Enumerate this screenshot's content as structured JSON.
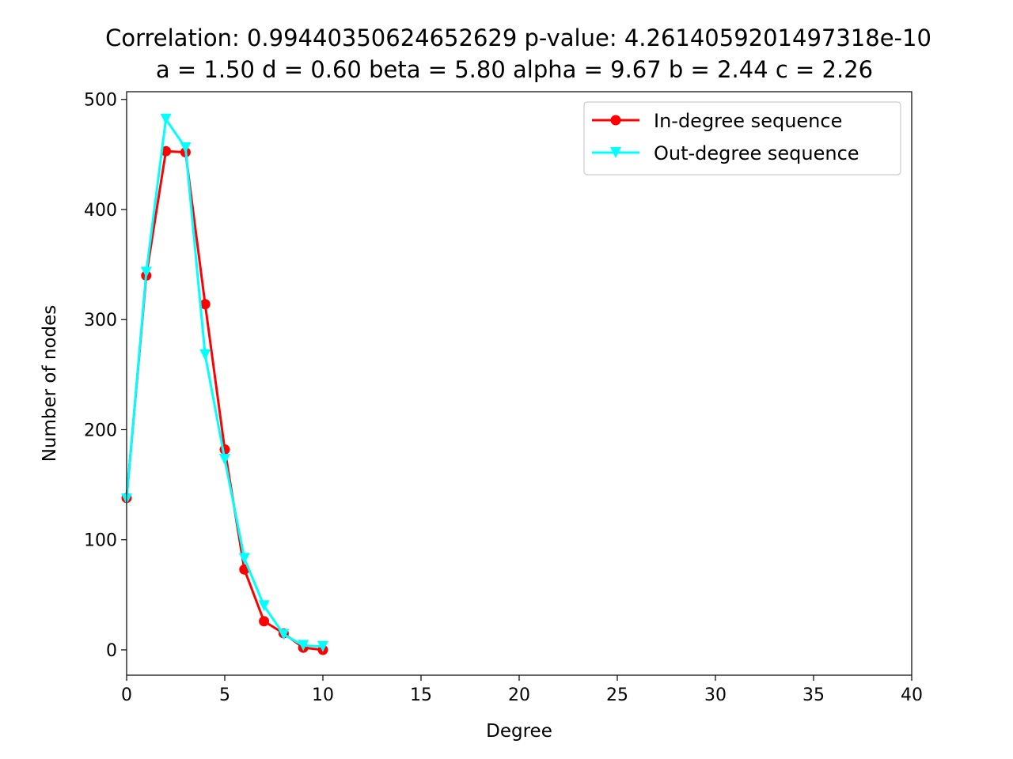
{
  "chart_data": {
    "type": "line",
    "title_line1": "Correlation: 0.99440350624652629 p-value: 4.2614059201497318e-10",
    "title_line2": "a = 1.50 d = 0.60 beta = 5.80 alpha = 9.67 b = 2.44 c = 2.26",
    "xlabel": "Degree",
    "ylabel": "Number of nodes",
    "xlim": [
      0,
      40
    ],
    "ylim": [
      -23,
      507
    ],
    "xticks": [
      0,
      5,
      10,
      15,
      20,
      25,
      30,
      35,
      40
    ],
    "yticks": [
      0,
      100,
      200,
      300,
      400,
      500
    ],
    "grid": false,
    "legend_position": "top-right",
    "x": [
      0,
      1,
      2,
      3,
      4,
      5,
      6,
      7,
      8,
      9,
      10
    ],
    "series": [
      {
        "name": "In-degree sequence",
        "color": "#ff0000",
        "marker": "circle",
        "values": [
          138,
          340,
          453,
          452,
          314,
          182,
          73,
          26,
          15,
          2,
          0
        ]
      },
      {
        "name": "Out-degree sequence",
        "color": "#00ffff",
        "marker": "triangle-down",
        "values": [
          137,
          343,
          482,
          456,
          268,
          173,
          83,
          40,
          14,
          4,
          3
        ]
      }
    ]
  }
}
